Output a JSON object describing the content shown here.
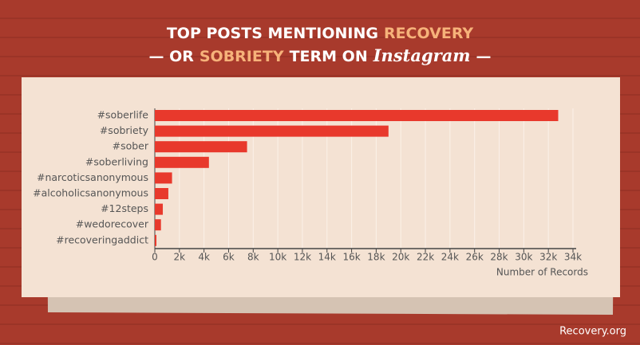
{
  "chart_data": {
    "type": "bar",
    "orientation": "horizontal",
    "title_lines": [
      [
        {
          "text": "TOP POSTS MENTIONING",
          "color": "#ffffff"
        },
        {
          "text": "RECOVERY",
          "color": "#f6b27a"
        }
      ],
      [
        {
          "text": "— OR",
          "color": "#ffffff"
        },
        {
          "text": "SOBRIETY",
          "color": "#f6b27a"
        },
        {
          "text": "TERM ON",
          "color": "#ffffff"
        },
        {
          "text": "Instagram",
          "color": "#ffffff"
        },
        {
          "text": "—",
          "color": "#ffffff"
        }
      ]
    ],
    "categories": [
      "#soberlife",
      "#sobriety",
      "#sober",
      "#soberliving",
      "#narcoticsanonymous",
      "#alcoholicsanonymous",
      "#12steps",
      "#wedorecover",
      "#recoveringaddict"
    ],
    "values": [
      32800,
      19000,
      7500,
      4400,
      1400,
      1100,
      650,
      500,
      130
    ],
    "color": "#e8392c",
    "xlim": [
      0,
      34000
    ],
    "xticks": [
      0,
      {
        "value": 2000,
        "label": "2k"
      },
      {
        "value": 4000,
        "label": "4k"
      },
      {
        "value": 6000,
        "label": "6k"
      },
      {
        "value": 8000,
        "label": "8k"
      },
      {
        "value": 10000,
        "label": "10k"
      },
      {
        "value": 12000,
        "label": "12k"
      },
      {
        "value": 14000,
        "label": "14k"
      },
      {
        "value": 16000,
        "label": "16k"
      },
      {
        "value": 18000,
        "label": "18k"
      },
      {
        "value": 20000,
        "label": "20k"
      },
      {
        "value": 22000,
        "label": "22k"
      },
      {
        "value": 24000,
        "label": "24k"
      },
      {
        "value": 26000,
        "label": "26k"
      },
      {
        "value": 28000,
        "label": "28k"
      },
      {
        "value": 30000,
        "label": "30k"
      },
      {
        "value": 32000,
        "label": "32k"
      },
      {
        "value": 34000,
        "label": "34k"
      }
    ],
    "xlabel": "Number of Records",
    "grid": true,
    "source": "Recovery.org"
  }
}
